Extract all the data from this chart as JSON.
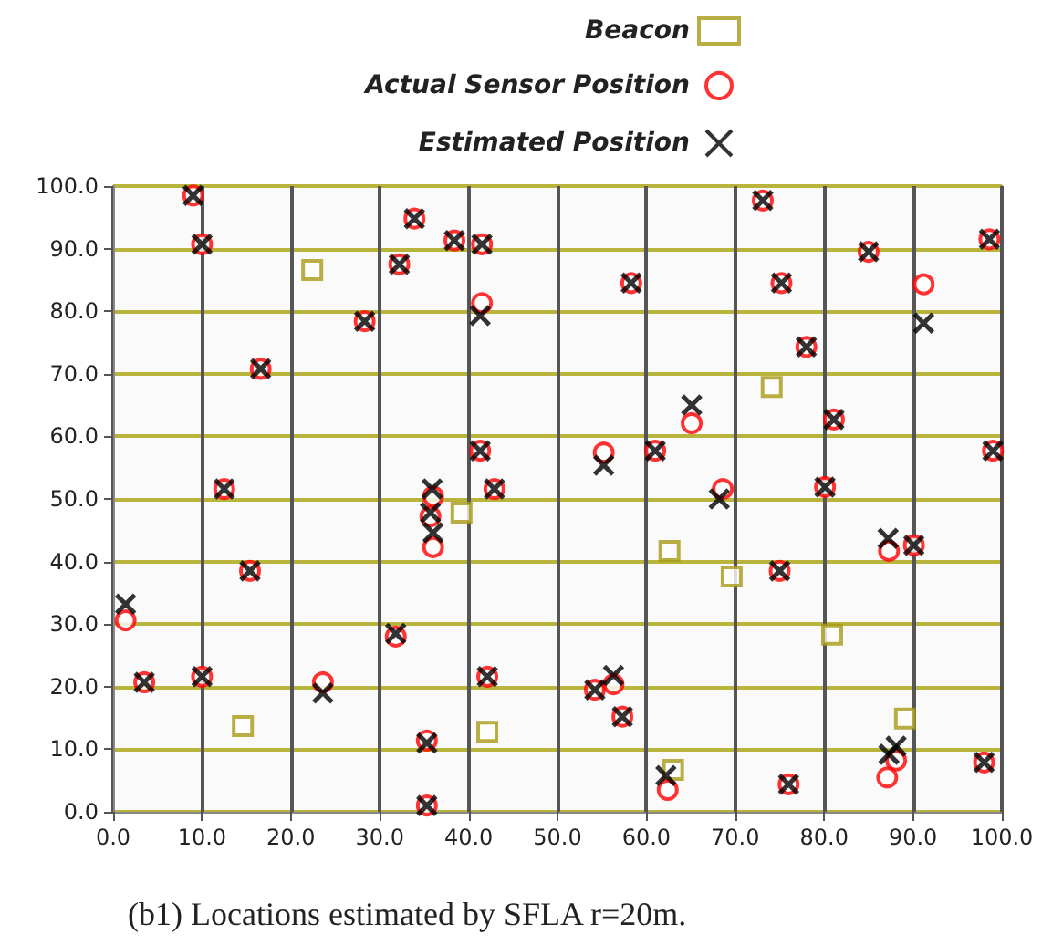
{
  "chart_data": {
    "type": "scatter",
    "annotations": [
      "(b1) Locations estimated by SFLA r=20m."
    ],
    "xlim": [
      0,
      100
    ],
    "ylim": [
      0,
      100
    ],
    "xticks": [
      {
        "value": 0,
        "label": "0.0"
      },
      {
        "value": 10,
        "label": "10.0"
      },
      {
        "value": 20,
        "label": "20.0"
      },
      {
        "value": 30,
        "label": "30.0"
      },
      {
        "value": 40,
        "label": "40.0"
      },
      {
        "value": 50,
        "label": "50.0"
      },
      {
        "value": 60,
        "label": "60.0"
      },
      {
        "value": 70,
        "label": "70.0"
      },
      {
        "value": 80,
        "label": "80.0"
      },
      {
        "value": 90,
        "label": "90.0"
      },
      {
        "value": 100,
        "label": "100.0"
      }
    ],
    "yticks": [
      {
        "value": 0,
        "label": "0.0"
      },
      {
        "value": 10,
        "label": "10.0"
      },
      {
        "value": 20,
        "label": "20.0"
      },
      {
        "value": 30,
        "label": "30.0"
      },
      {
        "value": 40,
        "label": "40.0"
      },
      {
        "value": 50,
        "label": "50.0"
      },
      {
        "value": 60,
        "label": "60.0"
      },
      {
        "value": 70,
        "label": "70.0"
      },
      {
        "value": 80,
        "label": "80.0"
      },
      {
        "value": 90,
        "label": "90.0"
      },
      {
        "value": 100,
        "label": "100.0"
      }
    ],
    "grid": true,
    "legend": "top right",
    "series": [
      {
        "name": "Beacon",
        "color": "#a69a14",
        "marker": "square",
        "x": [
          22.4,
          39.2,
          14.6,
          42.1,
          62.6,
          69.6,
          74.1,
          80.9,
          89.1,
          63
        ],
        "values": [
          86.6,
          47.8,
          13.7,
          12.8,
          41.7,
          37.6,
          67.9,
          28.3,
          14.9,
          6.7
        ]
      },
      {
        "name": "Actual Sensor Position",
        "color": "#ff0000",
        "marker": "circle",
        "x": [
          9,
          10,
          33.9,
          32.2,
          38.4,
          41.5,
          41.5,
          28.3,
          16.6,
          41.3,
          12.5,
          36,
          35.7,
          36,
          42.9,
          15.4,
          1.4,
          3.5,
          10,
          23.6,
          31.8,
          42.1,
          35.3,
          35.3,
          54.2,
          56.3,
          57.3,
          55.2,
          61,
          65.1,
          68.6,
          58.3,
          73.1,
          75.2,
          78,
          85,
          91.2,
          98.6,
          81.1,
          80.1,
          99,
          75,
          87.3,
          90.1,
          88.1,
          87.1,
          76,
          98,
          62.4
        ],
        "values": [
          98.5,
          90.7,
          94.8,
          87.5,
          91.3,
          90.7,
          81.3,
          78.4,
          70.8,
          57.7,
          51.6,
          50.4,
          47.2,
          42.3,
          51.6,
          38.5,
          30.6,
          20.7,
          21.6,
          20.7,
          28,
          21.6,
          11.4,
          1,
          19.5,
          20.4,
          15.2,
          57.4,
          57.7,
          62.1,
          51.6,
          84.5,
          97.7,
          84.5,
          74.3,
          89.5,
          84.3,
          91.5,
          62.7,
          51.9,
          57.7,
          38.5,
          41.7,
          42.6,
          8.2,
          5.5,
          4.4,
          7.9,
          3.5
        ]
      },
      {
        "name": "Estimated Position",
        "color": "#000000",
        "marker": "cross",
        "x": [
          9,
          10,
          33.9,
          32.2,
          38.4,
          41.5,
          41.3,
          28.3,
          16.6,
          41.3,
          12.5,
          35.9,
          35.7,
          36,
          42.9,
          15.4,
          1.4,
          3.5,
          10,
          23.6,
          31.8,
          42.1,
          35.3,
          35.3,
          54.2,
          56.3,
          57.3,
          55.2,
          61,
          65.1,
          68.2,
          58.3,
          73.1,
          75.2,
          78,
          85,
          91.2,
          98.6,
          81.1,
          80.1,
          99,
          75,
          87.2,
          90.1,
          88.1,
          87.3,
          76,
          98,
          62.2
        ],
        "values": [
          98.5,
          90.7,
          94.8,
          87.5,
          91.3,
          90.7,
          79.3,
          78.4,
          70.8,
          57.7,
          51.6,
          51.6,
          47.8,
          44.6,
          51.6,
          38.5,
          33.2,
          20.7,
          21.6,
          19,
          28.5,
          21.6,
          11,
          1,
          19.5,
          21.8,
          15.2,
          55.4,
          57.7,
          65,
          50,
          84.5,
          97.7,
          84.5,
          74.3,
          89.5,
          78.1,
          91.5,
          62.7,
          51.9,
          57.7,
          38.5,
          43.7,
          42.6,
          10.5,
          9.2,
          4.4,
          7.9,
          5.8
        ]
      }
    ]
  }
}
